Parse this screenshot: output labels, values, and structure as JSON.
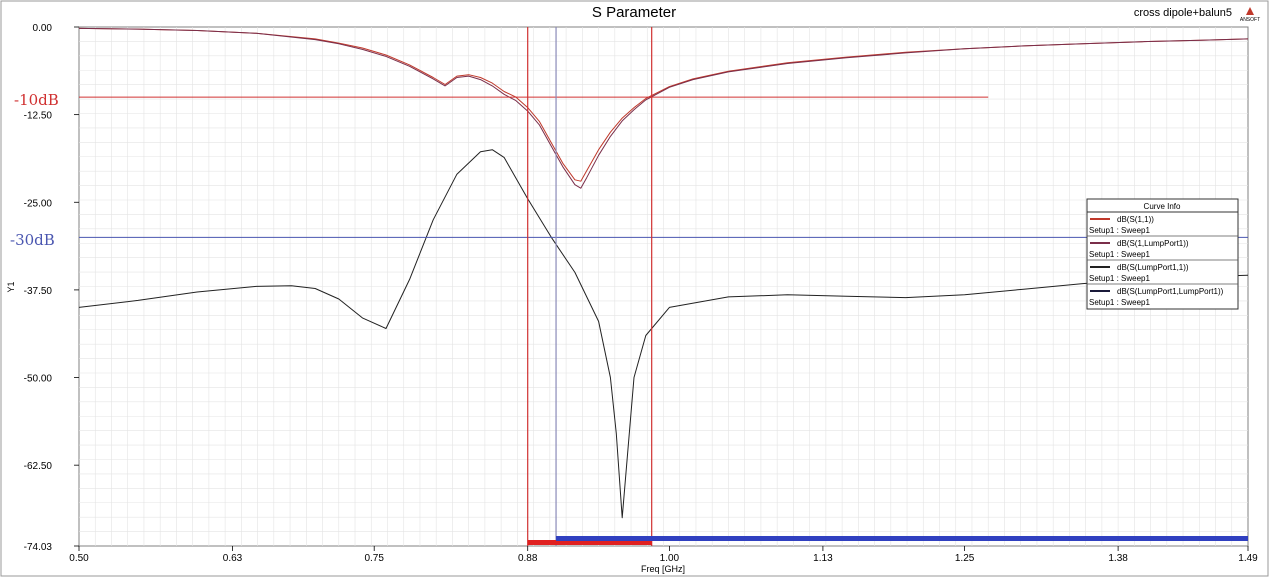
{
  "chart_data": {
    "type": "line",
    "title": "S Parameter",
    "corner_label": "cross dipole+balun5",
    "logo_text": "ANSOFT",
    "xlabel": "Freq [GHz]",
    "ylabel": "Y1",
    "xlim": [
      0.5,
      1.49
    ],
    "ylim": [
      -74.03,
      0
    ],
    "x_ticks": [
      {
        "value": 0.5,
        "label": "0.50"
      },
      {
        "value": 0.63,
        "label": "0.63"
      },
      {
        "value": 0.75,
        "label": "0.75"
      },
      {
        "value": 0.88,
        "label": "0.88"
      },
      {
        "value": 1.0,
        "label": "1.00"
      },
      {
        "value": 1.13,
        "label": "1.13"
      },
      {
        "value": 1.25,
        "label": "1.25"
      },
      {
        "value": 1.38,
        "label": "1.38"
      },
      {
        "value": 1.49,
        "label": "1.49"
      }
    ],
    "y_ticks": [
      {
        "value": 0,
        "label": "0.00"
      },
      {
        "value": -12.5,
        "label": "-12.50"
      },
      {
        "value": -25,
        "label": "-25.00"
      },
      {
        "value": -37.5,
        "label": "-37.50"
      },
      {
        "value": -50,
        "label": "-50.00"
      },
      {
        "value": -62.5,
        "label": "-62.50"
      },
      {
        "value": -74.03,
        "label": "-74.03"
      }
    ],
    "grid": true,
    "legend": {
      "title": "Curve Info",
      "placement": "right",
      "entries": [
        {
          "name": "dB(S(1,1))",
          "sub": "Setup1 : Sweep1",
          "color": "#c0392b"
        },
        {
          "name": "dB(S(1,LumpPort1))",
          "sub": "Setup1 : Sweep1",
          "color": "#7a2e4a"
        },
        {
          "name": "dB(S(LumpPort1,1))",
          "sub": "Setup1 : Sweep1",
          "color": "#222222"
        },
        {
          "name": "dB(S(LumpPort1,LumpPort1))",
          "sub": "Setup1 : Sweep1",
          "color": "#1a1a3a"
        }
      ]
    },
    "series": [
      {
        "key": "s11",
        "color": "#c0392b",
        "x": [
          0.5,
          0.55,
          0.6,
          0.65,
          0.7,
          0.72,
          0.74,
          0.76,
          0.78,
          0.8,
          0.81,
          0.82,
          0.83,
          0.84,
          0.85,
          0.86,
          0.87,
          0.88,
          0.89,
          0.9,
          0.91,
          0.92,
          0.925,
          0.93,
          0.94,
          0.95,
          0.96,
          0.97,
          0.98,
          1.0,
          1.02,
          1.05,
          1.1,
          1.15,
          1.2,
          1.25,
          1.3,
          1.35,
          1.4,
          1.45,
          1.49
        ],
        "y": [
          -0.2,
          -0.3,
          -0.5,
          -0.9,
          -1.7,
          -2.3,
          -3.0,
          -4.0,
          -5.4,
          -7.2,
          -8.2,
          -7.0,
          -6.8,
          -7.2,
          -8.0,
          -9.2,
          -10.0,
          -11.5,
          -13.5,
          -16.5,
          -19.5,
          -21.8,
          -22.0,
          -20.5,
          -17.5,
          -15.0,
          -13.0,
          -11.5,
          -10.2,
          -8.5,
          -7.4,
          -6.3,
          -5.1,
          -4.3,
          -3.6,
          -3.1,
          -2.7,
          -2.4,
          -2.1,
          -1.9,
          -1.7
        ]
      },
      {
        "key": "s1lp",
        "color": "#7a2e4a",
        "x": [
          0.5,
          0.55,
          0.6,
          0.65,
          0.7,
          0.72,
          0.74,
          0.76,
          0.78,
          0.8,
          0.81,
          0.82,
          0.83,
          0.84,
          0.85,
          0.86,
          0.87,
          0.88,
          0.89,
          0.9,
          0.91,
          0.92,
          0.925,
          0.93,
          0.94,
          0.95,
          0.96,
          0.97,
          0.98,
          1.0,
          1.02,
          1.05,
          1.1,
          1.15,
          1.2,
          1.25,
          1.3,
          1.35,
          1.4,
          1.45,
          1.49
        ],
        "y": [
          -0.2,
          -0.3,
          -0.5,
          -0.9,
          -1.8,
          -2.4,
          -3.2,
          -4.2,
          -5.6,
          -7.4,
          -8.4,
          -7.2,
          -7.0,
          -7.5,
          -8.4,
          -9.6,
          -10.5,
          -12.0,
          -14.0,
          -17.0,
          -20.0,
          -22.5,
          -23.0,
          -21.5,
          -18.3,
          -15.6,
          -13.4,
          -11.8,
          -10.4,
          -8.6,
          -7.5,
          -6.4,
          -5.2,
          -4.4,
          -3.7,
          -3.1,
          -2.7,
          -2.4,
          -2.1,
          -1.9,
          -1.7
        ]
      },
      {
        "key": "slp1",
        "color": "#222222",
        "x": [
          0.5,
          0.55,
          0.6,
          0.65,
          0.68,
          0.7,
          0.72,
          0.74,
          0.76,
          0.78,
          0.8,
          0.82,
          0.84,
          0.85,
          0.86,
          0.88,
          0.9,
          0.92,
          0.94,
          0.95,
          0.955,
          0.96,
          0.965,
          0.97,
          0.98,
          1.0,
          1.05,
          1.1,
          1.15,
          1.2,
          1.25,
          1.3,
          1.35,
          1.4,
          1.45,
          1.49
        ],
        "y": [
          -40.0,
          -39.0,
          -37.8,
          -37.0,
          -36.9,
          -37.3,
          -38.8,
          -41.5,
          -43.0,
          -36.0,
          -27.5,
          -21.0,
          -17.8,
          -17.5,
          -18.6,
          -24.5,
          -30.0,
          -35.0,
          -42.0,
          -50.0,
          -58.0,
          -70.0,
          -60.0,
          -50.0,
          -44.0,
          -40.0,
          -38.5,
          -38.2,
          -38.4,
          -38.6,
          -38.2,
          -37.4,
          -36.6,
          -36.0,
          -35.6,
          -35.4
        ]
      }
    ],
    "annotations": {
      "hlines": [
        {
          "y": -10,
          "label": "-10dB",
          "color": "#d03030"
        },
        {
          "y": -30,
          "label": "-30dB",
          "color": "#4a56b0"
        }
      ],
      "vlines": [
        {
          "x": 0.88,
          "color": "#d03030"
        },
        {
          "x": 0.904,
          "color": "#8a8ab8"
        },
        {
          "x": 0.985,
          "color": "#d03030"
        }
      ],
      "bands": [
        {
          "x0": 0.88,
          "x1": 0.985,
          "color": "#e02020"
        },
        {
          "x0": 0.904,
          "x1": 1.49,
          "color": "#3040c0"
        }
      ]
    }
  }
}
